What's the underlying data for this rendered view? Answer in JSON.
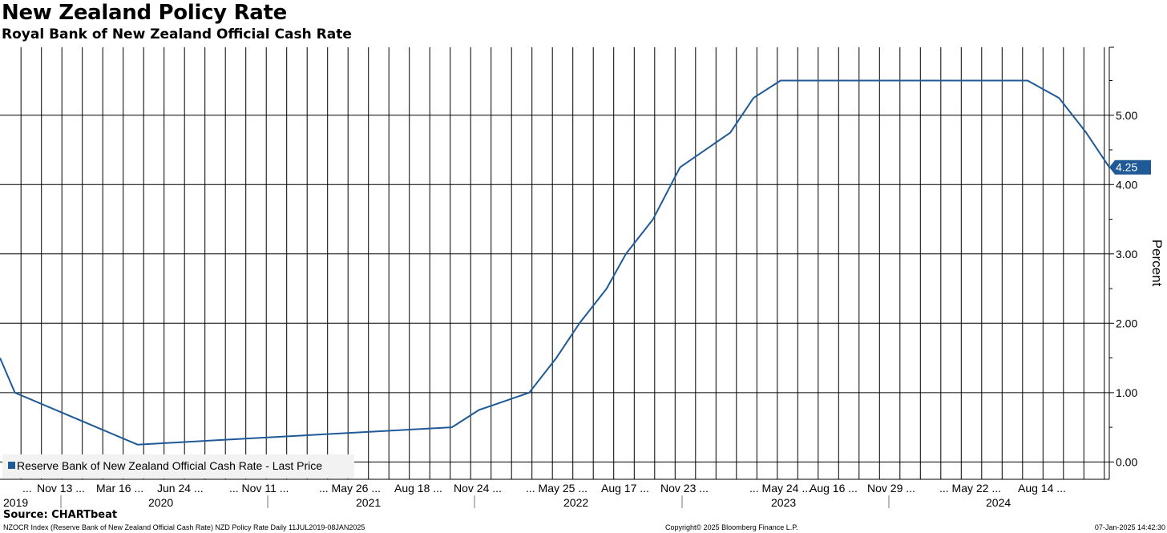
{
  "header": {
    "title": "New Zealand Policy Rate",
    "subtitle": "Royal Bank of New Zealand Official Cash Rate"
  },
  "footer": {
    "source": "Source: CHARTbeat",
    "ticker": "NZOCR Index (Reserve Bank of New Zealand Official Cash Rate) NZD Policy Rate  Daily 11JUL2019-08JAN2025",
    "copyright": "Copyright© 2025 Bloomberg Finance L.P.",
    "timestamp": "07-Jan-2025 14:42:30"
  },
  "colors": {
    "series": "#1f5a96",
    "grid": "#000000",
    "legend_bg": "#f2f2f2",
    "last_price_label_bg": "#1f5a96"
  },
  "chart_data": {
    "type": "line",
    "title": "New Zealand Policy Rate",
    "subtitle": "Royal Bank of New Zealand Official Cash Rate",
    "ylabel": "Percent",
    "ylim": [
      -0.25,
      5.98
    ],
    "y_ticks": [
      "0.00",
      "1.00",
      "2.00",
      "3.00",
      "4.00",
      "5.00"
    ],
    "y_tick_values": [
      0,
      1,
      2,
      3,
      4,
      5
    ],
    "y_axis_side": "right",
    "xlim": [
      "2019-07-11",
      "2025-01-08"
    ],
    "x_tick_labels": [
      "...",
      "Nov 13 ...",
      "Mar 16 ...",
      "Jun 24 ...",
      "... Nov 11 ...",
      "... May 26 ...",
      "Aug 18 ...",
      "Nov 24 ...",
      "... May 25 ...",
      "Aug 17 ...",
      "Nov 23 ...",
      "... May 24 ...",
      "Aug 16 ...",
      "Nov 29 ...",
      "... May 22 ...",
      "Aug 14 ..."
    ],
    "years": [
      "2019",
      "2020",
      "2021",
      "2022",
      "2023",
      "2024"
    ],
    "grid": true,
    "legend": {
      "position": "bottom-left",
      "entries": [
        "Reserve Bank of New Zealand Official Cash Rate - Last Price"
      ]
    },
    "last_value_label": "4.25",
    "series": [
      {
        "name": "Reserve Bank of New Zealand Official Cash Rate - Last Price",
        "x": [
          "2019-07-11",
          "2019-08-07",
          "2020-03-16",
          "2021-10-06",
          "2021-11-24",
          "2022-02-23",
          "2022-04-13",
          "2022-05-25",
          "2022-07-13",
          "2022-08-17",
          "2022-10-05",
          "2022-11-23",
          "2023-02-22",
          "2023-04-05",
          "2023-05-24",
          "2024-08-13",
          "2024-10-09",
          "2024-11-27",
          "2025-01-08"
        ],
        "y": [
          1.5,
          1.0,
          0.25,
          0.5,
          0.75,
          1.0,
          1.5,
          2.0,
          2.5,
          3.0,
          3.5,
          4.25,
          4.75,
          5.25,
          5.5,
          5.5,
          5.25,
          4.75,
          4.25
        ]
      }
    ]
  }
}
